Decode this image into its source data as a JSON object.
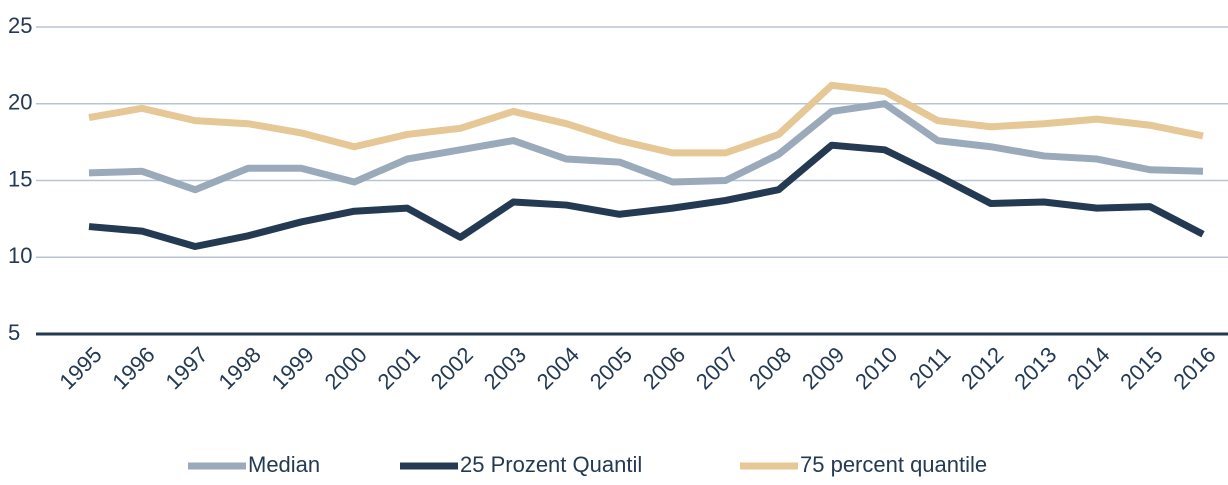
{
  "chart_data": {
    "type": "line",
    "x": [
      "1995",
      "1996",
      "1997",
      "1998",
      "1999",
      "2000",
      "2001",
      "2002",
      "2003",
      "2004",
      "2005",
      "2006",
      "2007",
      "2008",
      "2009",
      "2010",
      "2011",
      "2012",
      "2013",
      "2014",
      "2015",
      "2016"
    ],
    "series": [
      {
        "name": "Median",
        "color": "#9aaabb",
        "values": [
          15.5,
          15.6,
          14.4,
          15.8,
          15.8,
          14.9,
          16.4,
          17.0,
          17.6,
          16.4,
          16.2,
          14.9,
          15.0,
          16.7,
          19.5,
          20.0,
          17.6,
          17.2,
          16.6,
          16.4,
          15.7,
          15.6
        ]
      },
      {
        "name": "25 Prozent Quantil",
        "color": "#243a52",
        "values": [
          12.0,
          11.7,
          10.7,
          11.4,
          12.3,
          13.0,
          13.2,
          11.3,
          13.6,
          13.4,
          12.8,
          13.2,
          13.7,
          14.4,
          17.3,
          17.0,
          15.3,
          13.5,
          13.6,
          13.2,
          13.3,
          11.5
        ]
      },
      {
        "name": "75 percent quantile",
        "color": "#e6c796",
        "values": [
          19.1,
          19.7,
          18.9,
          18.7,
          18.1,
          17.2,
          18.0,
          18.4,
          19.5,
          18.7,
          17.6,
          16.8,
          16.8,
          18.0,
          21.2,
          20.8,
          18.9,
          18.5,
          18.7,
          19.0,
          18.6,
          17.9
        ]
      }
    ],
    "ylim": [
      5,
      25
    ],
    "yticks": [
      5,
      10,
      15,
      20,
      25
    ],
    "grid": true,
    "legend": "bottom"
  }
}
